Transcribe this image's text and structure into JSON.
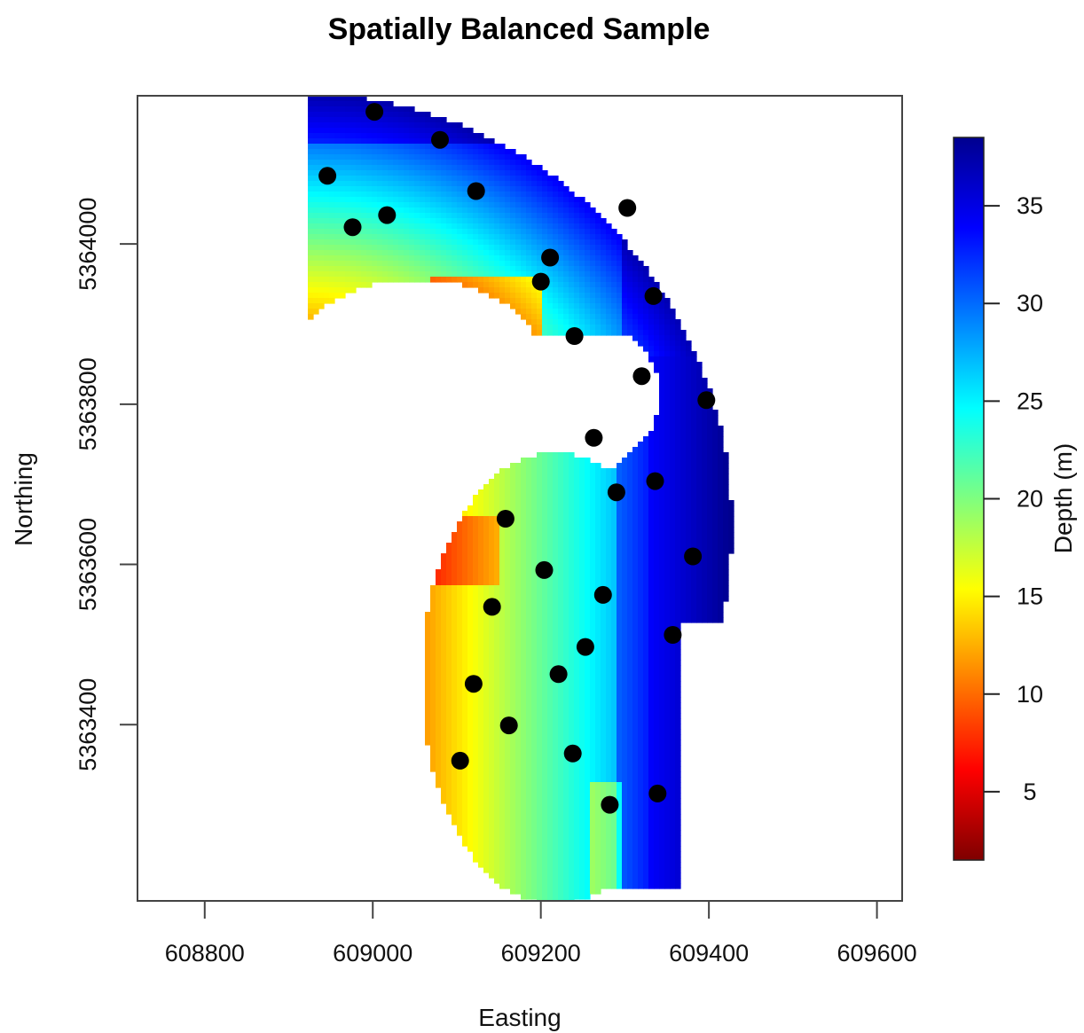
{
  "chart_data": {
    "type": "heatmap",
    "title": "Spatially Balanced Sample",
    "xlabel": "Easting",
    "ylabel": "Northing",
    "colorbar_label": "Depth (m)",
    "xlim": [
      608720,
      609630
    ],
    "ylim": [
      5363180,
      5364185
    ],
    "x_ticks": [
      "608800",
      "609000",
      "609200",
      "609400",
      "609600"
    ],
    "x_tick_values": [
      608800,
      609000,
      609200,
      609400,
      609600
    ],
    "y_ticks": [
      "5363400",
      "5363600",
      "5363800",
      "5364000"
    ],
    "y_tick_values": [
      5363400,
      5363600,
      5363800,
      5364000
    ],
    "colorbar_ticks": [
      "5",
      "10",
      "15",
      "20",
      "25",
      "30",
      "35"
    ],
    "colorbar_tick_values": [
      5,
      10,
      15,
      20,
      25,
      30,
      35
    ],
    "colorbar_range": [
      1.5,
      38.5
    ],
    "colormap": [
      "#7f0000",
      "#ff0000",
      "#ff7f00",
      "#ffff00",
      "#7fff7f",
      "#00ffff",
      "#007fff",
      "#0000ff",
      "#00008f"
    ],
    "sample_points": [
      {
        "x": 609002,
        "y": 5364165
      },
      {
        "x": 609080,
        "y": 5364130
      },
      {
        "x": 608946,
        "y": 5364085
      },
      {
        "x": 609123,
        "y": 5364066
      },
      {
        "x": 609303,
        "y": 5364045
      },
      {
        "x": 609017,
        "y": 5364036
      },
      {
        "x": 608976,
        "y": 5364021
      },
      {
        "x": 609211,
        "y": 5363983
      },
      {
        "x": 609200,
        "y": 5363953
      },
      {
        "x": 609334,
        "y": 5363935
      },
      {
        "x": 609240,
        "y": 5363885
      },
      {
        "x": 609320,
        "y": 5363835
      },
      {
        "x": 609397,
        "y": 5363805
      },
      {
        "x": 609263,
        "y": 5363758
      },
      {
        "x": 609336,
        "y": 5363704
      },
      {
        "x": 609290,
        "y": 5363690
      },
      {
        "x": 609158,
        "y": 5363657
      },
      {
        "x": 609381,
        "y": 5363610
      },
      {
        "x": 609204,
        "y": 5363593
      },
      {
        "x": 609274,
        "y": 5363562
      },
      {
        "x": 609142,
        "y": 5363547
      },
      {
        "x": 609357,
        "y": 5363512
      },
      {
        "x": 609253,
        "y": 5363497
      },
      {
        "x": 609221,
        "y": 5363463
      },
      {
        "x": 609120,
        "y": 5363451
      },
      {
        "x": 609162,
        "y": 5363399
      },
      {
        "x": 609238,
        "y": 5363364
      },
      {
        "x": 609104,
        "y": 5363355
      },
      {
        "x": 609339,
        "y": 5363314
      },
      {
        "x": 609282,
        "y": 5363300
      }
    ]
  }
}
